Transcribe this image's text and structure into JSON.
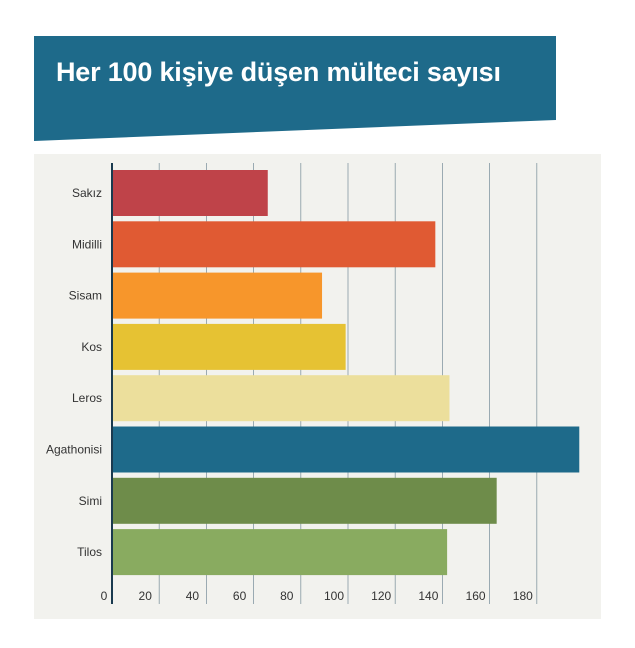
{
  "title": "Her 100 kişiye düşen mülteci sayısı",
  "colors": {
    "banner": "#1e6a8a",
    "panel": "#f2f2ee",
    "grid": "#2b4f66",
    "axis": "#1a3a4f"
  },
  "chart_data": {
    "type": "bar",
    "orientation": "horizontal",
    "title": "Her 100 kişiye düşen mülteci sayısı",
    "categories": [
      "Sakız",
      "Midilli",
      "Sisam",
      "Kos",
      "Leros",
      "Agathonisi",
      "Simi",
      "Tilos"
    ],
    "values": [
      66,
      137,
      89,
      99,
      143,
      198,
      163,
      142
    ],
    "bar_colors": [
      "#bf4349",
      "#e05a33",
      "#f7962b",
      "#e6c233",
      "#ecdf9c",
      "#1e6a8a",
      "#6e8c4a",
      "#89ab60"
    ],
    "xlim": [
      0,
      198
    ],
    "x_ticks": [
      0,
      20,
      40,
      60,
      80,
      100,
      120,
      140,
      160,
      180
    ],
    "grid": "vertical",
    "xlabel": "",
    "ylabel": ""
  }
}
